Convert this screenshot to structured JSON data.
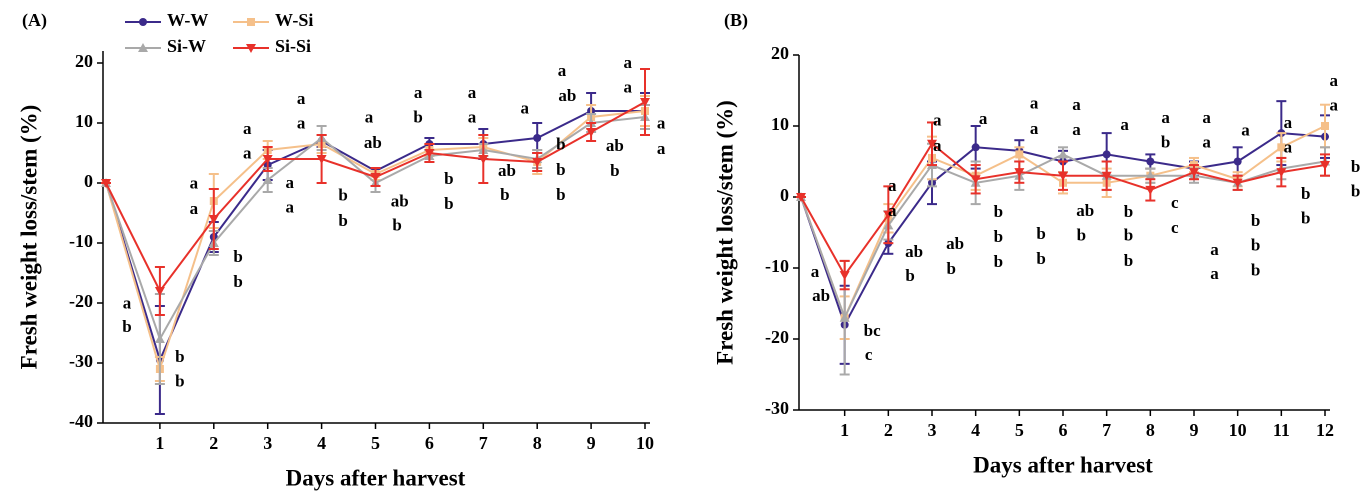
{
  "chart_data": [
    {
      "type": "line",
      "panel_label": "(A)",
      "y_label": "Fresh weight loss/stem (%)",
      "x_label": "Days after harvest",
      "legend": "upper left",
      "x": [
        0,
        1,
        2,
        3,
        4,
        5,
        6,
        7,
        8,
        9,
        10
      ],
      "xlim": [
        0,
        10
      ],
      "xticks": [
        1,
        2,
        3,
        4,
        5,
        6,
        7,
        8,
        9,
        10
      ],
      "ylim": [
        -40,
        22
      ],
      "yticks": [
        -40,
        -30,
        -20,
        -10,
        0,
        10,
        20
      ],
      "series": [
        {
          "name": "W-W",
          "color": "#3b2a8a",
          "marker": "circle",
          "values": [
            0,
            -29.5,
            -9,
            3,
            7,
            2,
            6.5,
            6.5,
            7.5,
            12,
            12
          ],
          "errors": [
            0,
            9,
            2.5,
            2.5,
            1,
            0.5,
            1,
            2.5,
            2.5,
            3,
            3
          ]
        },
        {
          "name": "W-Si",
          "color": "#f5c08a",
          "marker": "square",
          "values": [
            0,
            -31,
            -3,
            5.5,
            6.5,
            1.5,
            5.5,
            6,
            3.5,
            11,
            12
          ],
          "errors": [
            0,
            2,
            4.5,
            1.5,
            1.5,
            1,
            1,
            1.5,
            2,
            2,
            2.5
          ]
        },
        {
          "name": "Si-W",
          "color": "#a9a9a9",
          "marker": "triangle-up",
          "values": [
            0,
            -26,
            -10,
            0.5,
            7.5,
            0,
            4.5,
            5.5,
            4,
            10,
            11
          ],
          "errors": [
            0,
            7.5,
            2,
            2,
            2,
            1.5,
            1,
            1,
            1.5,
            1.5,
            2
          ]
        },
        {
          "name": "Si-Si",
          "color": "#e8312a",
          "marker": "triangle-down",
          "values": [
            0,
            -18,
            -6,
            4,
            4,
            1,
            5,
            4,
            3.5,
            8.5,
            13.5
          ],
          "errors": [
            0,
            4,
            5,
            2,
            4,
            1.5,
            1.5,
            4,
            1.5,
            1.5,
            5.5
          ]
        }
      ],
      "annotations": [
        {
          "x": 0.39,
          "y": -20.3,
          "text": "a"
        },
        {
          "x": 0.39,
          "y": -24.2,
          "text": "b"
        },
        {
          "x": 1.37,
          "y": -29.2,
          "text": "b"
        },
        {
          "x": 1.37,
          "y": -33.3,
          "text": "b"
        },
        {
          "x": 1.63,
          "y": -0.3,
          "text": "a"
        },
        {
          "x": 1.63,
          "y": -4.5,
          "text": "a"
        },
        {
          "x": 2.45,
          "y": -12.5,
          "text": "b"
        },
        {
          "x": 2.45,
          "y": -16.7,
          "text": "b"
        },
        {
          "x": 2.62,
          "y": 8.8,
          "text": "a"
        },
        {
          "x": 2.62,
          "y": 4.7,
          "text": "a"
        },
        {
          "x": 3.41,
          "y": -0.2,
          "text": "a"
        },
        {
          "x": 3.41,
          "y": -4.3,
          "text": "a"
        },
        {
          "x": 3.62,
          "y": 13.8,
          "text": "a"
        },
        {
          "x": 3.62,
          "y": 9.7,
          "text": "a"
        },
        {
          "x": 4.4,
          "y": -2.3,
          "text": "b"
        },
        {
          "x": 4.4,
          "y": -6.5,
          "text": "b"
        },
        {
          "x": 4.88,
          "y": 10.7,
          "text": "a"
        },
        {
          "x": 4.95,
          "y": 6.5,
          "text": "ab"
        },
        {
          "x": 5.45,
          "y": -3.3,
          "text": "ab"
        },
        {
          "x": 5.4,
          "y": -7.3,
          "text": "b"
        },
        {
          "x": 5.79,
          "y": 14.8,
          "text": "a"
        },
        {
          "x": 5.79,
          "y": 10.7,
          "text": "b"
        },
        {
          "x": 6.36,
          "y": 0.5,
          "text": "b"
        },
        {
          "x": 6.36,
          "y": -3.7,
          "text": "b"
        },
        {
          "x": 6.79,
          "y": 14.8,
          "text": "a"
        },
        {
          "x": 6.79,
          "y": 10.7,
          "text": "a"
        },
        {
          "x": 7.44,
          "y": 1.8,
          "text": "ab"
        },
        {
          "x": 7.4,
          "y": -2.2,
          "text": "b"
        },
        {
          "x": 7.77,
          "y": 12.2,
          "text": "a"
        },
        {
          "x": 8.44,
          "y": 6.2,
          "text": "b"
        },
        {
          "x": 8.44,
          "y": 2,
          "text": "b"
        },
        {
          "x": 8.44,
          "y": -2.2,
          "text": "b"
        },
        {
          "x": 8.46,
          "y": 18.5,
          "text": "a"
        },
        {
          "x": 8.56,
          "y": 14.3,
          "text": "ab"
        },
        {
          "x": 9.44,
          "y": 6,
          "text": "ab"
        },
        {
          "x": 9.44,
          "y": 1.8,
          "text": "b"
        },
        {
          "x": 9.68,
          "y": 19.8,
          "text": "a"
        },
        {
          "x": 9.68,
          "y": 15.7,
          "text": "a"
        },
        {
          "x": 10.3,
          "y": 9.7,
          "text": "a"
        },
        {
          "x": 10.3,
          "y": 5.5,
          "text": "a"
        }
      ]
    },
    {
      "type": "line",
      "panel_label": "(B)",
      "y_label": "Fresh weight loss/stem (%)",
      "x_label": "Days after harvest",
      "x": [
        0,
        1,
        2,
        3,
        4,
        5,
        6,
        7,
        8,
        9,
        10,
        11,
        12
      ],
      "xlim": [
        0,
        12
      ],
      "xticks": [
        1,
        2,
        3,
        4,
        5,
        6,
        7,
        8,
        9,
        10,
        11,
        12
      ],
      "ylim": [
        -30,
        20
      ],
      "yticks": [
        -30,
        -20,
        -10,
        0,
        10,
        20
      ],
      "series": [
        {
          "name": "W-W",
          "color": "#3b2a8a",
          "marker": "circle",
          "values": [
            0,
            -18,
            -6.5,
            2,
            7,
            6.5,
            5,
            6,
            5,
            4,
            5,
            9,
            8.5
          ],
          "errors": [
            0,
            5.5,
            1.5,
            3,
            3,
            1.5,
            1.5,
            3,
            1,
            1,
            2,
            4.5,
            3
          ]
        },
        {
          "name": "W-Si",
          "color": "#f5c08a",
          "marker": "square",
          "values": [
            0,
            -17,
            -3,
            5.5,
            3,
            6,
            2,
            2,
            3,
            4.5,
            2.5,
            7,
            10
          ],
          "errors": [
            0,
            3,
            2,
            3,
            2,
            1,
            1.5,
            2,
            1,
            1,
            1,
            2,
            3
          ]
        },
        {
          "name": "Si-W",
          "color": "#a9a9a9",
          "marker": "triangle-up",
          "values": [
            0,
            -17,
            -4,
            4.5,
            2,
            3,
            6,
            3,
            3,
            3,
            2,
            4,
            5
          ],
          "errors": [
            0,
            8,
            2,
            3,
            3,
            2,
            1,
            2,
            1,
            1,
            1,
            1.5,
            2
          ]
        },
        {
          "name": "Si-Si",
          "color": "#e8312a",
          "marker": "triangle-down",
          "values": [
            0,
            -11,
            -2.5,
            7.5,
            2.5,
            3.5,
            3,
            3,
            1,
            3.5,
            2,
            3.5,
            4.5
          ],
          "errors": [
            0,
            2,
            4,
            3,
            2,
            1.5,
            2,
            2,
            1.5,
            1,
            1,
            2,
            1.5
          ]
        }
      ],
      "annotations": [
        {
          "x": 0.32,
          "y": -10.7,
          "text": "a"
        },
        {
          "x": 0.46,
          "y": -14.1,
          "text": "ab"
        },
        {
          "x": 1.63,
          "y": -19,
          "text": "bc"
        },
        {
          "x": 1.55,
          "y": -22.4,
          "text": "c"
        },
        {
          "x": 2.09,
          "y": 1.4,
          "text": "a"
        },
        {
          "x": 2.09,
          "y": -2.1,
          "text": "a"
        },
        {
          "x": 2.59,
          "y": -7.9,
          "text": "ab"
        },
        {
          "x": 2.5,
          "y": -11.3,
          "text": "b"
        },
        {
          "x": 3.12,
          "y": 10.6,
          "text": "a"
        },
        {
          "x": 3.12,
          "y": 7,
          "text": "a"
        },
        {
          "x": 3.53,
          "y": -6.8,
          "text": "ab"
        },
        {
          "x": 3.44,
          "y": -10.3,
          "text": "b"
        },
        {
          "x": 4.17,
          "y": 10.8,
          "text": "a"
        },
        {
          "x": 4.52,
          "y": -2.3,
          "text": "b"
        },
        {
          "x": 4.52,
          "y": -5.8,
          "text": "b"
        },
        {
          "x": 4.52,
          "y": -9.3,
          "text": "b"
        },
        {
          "x": 5.34,
          "y": 13,
          "text": "a"
        },
        {
          "x": 5.34,
          "y": 9.4,
          "text": "a"
        },
        {
          "x": 5.5,
          "y": -5.4,
          "text": "b"
        },
        {
          "x": 5.5,
          "y": -8.9,
          "text": "b"
        },
        {
          "x": 6.31,
          "y": 12.8,
          "text": "a"
        },
        {
          "x": 6.31,
          "y": 9.3,
          "text": "a"
        },
        {
          "x": 6.51,
          "y": -2.1,
          "text": "ab"
        },
        {
          "x": 6.42,
          "y": -5.6,
          "text": "b"
        },
        {
          "x": 7.41,
          "y": 10,
          "text": "a"
        },
        {
          "x": 7.5,
          "y": -2.3,
          "text": "b"
        },
        {
          "x": 7.5,
          "y": -5.6,
          "text": "b"
        },
        {
          "x": 7.5,
          "y": -9.2,
          "text": "b"
        },
        {
          "x": 8.35,
          "y": 11,
          "text": "a"
        },
        {
          "x": 8.35,
          "y": 7.5,
          "text": "b"
        },
        {
          "x": 8.56,
          "y": -1,
          "text": "c"
        },
        {
          "x": 8.56,
          "y": -4.5,
          "text": "c"
        },
        {
          "x": 9.29,
          "y": 11,
          "text": "a"
        },
        {
          "x": 9.29,
          "y": 7.5,
          "text": "a"
        },
        {
          "x": 9.47,
          "y": -7.6,
          "text": "a"
        },
        {
          "x": 9.47,
          "y": -11,
          "text": "a"
        },
        {
          "x": 10.18,
          "y": 9.2,
          "text": "a"
        },
        {
          "x": 10.41,
          "y": -3.5,
          "text": "b"
        },
        {
          "x": 10.41,
          "y": -7,
          "text": "b"
        },
        {
          "x": 10.41,
          "y": -10.5,
          "text": "b"
        },
        {
          "x": 11.15,
          "y": 10.3,
          "text": "a"
        },
        {
          "x": 11.15,
          "y": 6.8,
          "text": "a"
        },
        {
          "x": 11.56,
          "y": 0.3,
          "text": "b"
        },
        {
          "x": 11.56,
          "y": -3.2,
          "text": "b"
        },
        {
          "x": 12.2,
          "y": 16.2,
          "text": "a"
        },
        {
          "x": 12.2,
          "y": 12.7,
          "text": "a"
        },
        {
          "x": 12.7,
          "y": 4.1,
          "text": "b"
        },
        {
          "x": 12.7,
          "y": 0.6,
          "text": "b"
        }
      ]
    }
  ]
}
